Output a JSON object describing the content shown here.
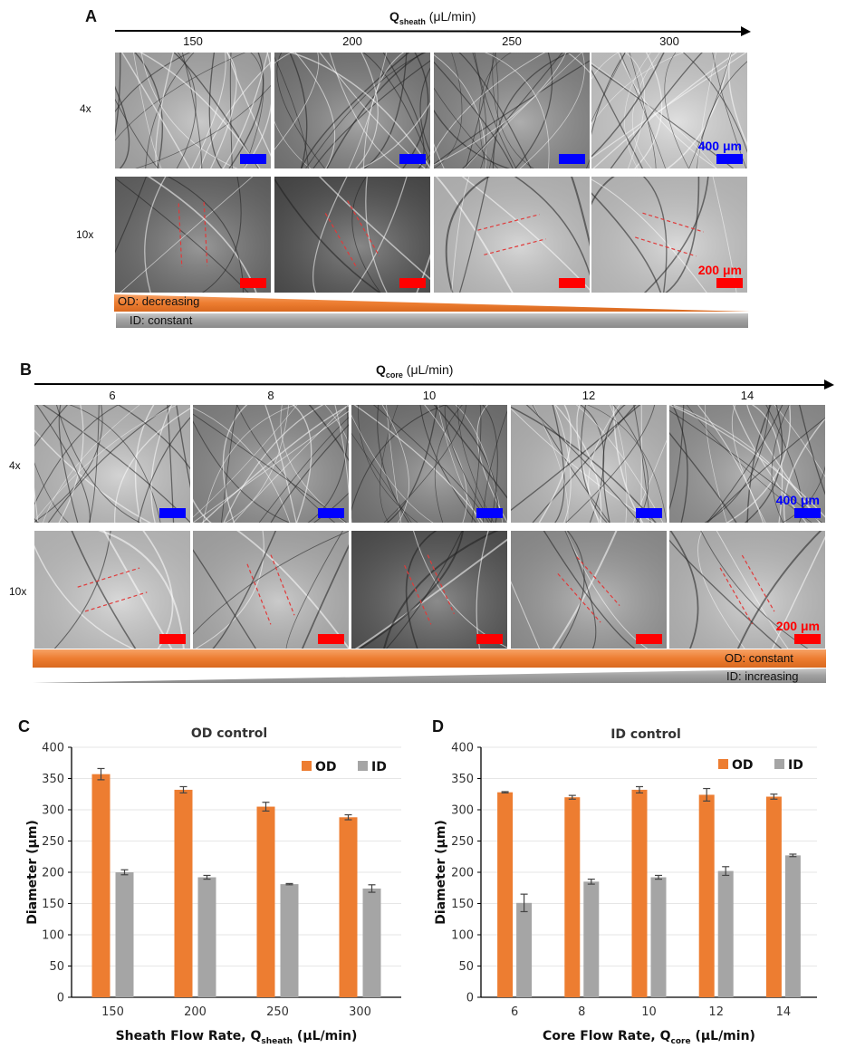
{
  "panel_a": {
    "letter": "A",
    "axis_symbol": "Q",
    "axis_sub": "sheath",
    "axis_unit": " (μL/min)",
    "columns": [
      "150",
      "200",
      "250",
      "300"
    ],
    "rows": [
      "4x",
      "10x"
    ],
    "scale_4x": "400 μm",
    "scale_10x": "200 μm",
    "od_label": "OD: decreasing",
    "id_label": "ID: constant",
    "tones_4x": [
      "#b4b4b4",
      "#7e7e7e",
      "#8a8a8a",
      "#d8d8d8"
    ],
    "tones_10x": [
      "#6a6a6a",
      "#4f4f4f",
      "#c9c9c9",
      "#cfcfcf"
    ]
  },
  "panel_b": {
    "letter": "B",
    "axis_symbol": "Q",
    "axis_sub": "core",
    "axis_unit": " (μL/min)",
    "columns": [
      "6",
      "8",
      "10",
      "12",
      "14"
    ],
    "rows": [
      "4x",
      "10x"
    ],
    "scale_4x": "400 μm",
    "scale_10x": "200 μm",
    "od_label": "OD: constant",
    "id_label": "ID: increasing",
    "tones_4x": [
      "#c4c4c4",
      "#8e8e8e",
      "#7a7a7a",
      "#c2c2c2",
      "#9a9a9a"
    ],
    "tones_10x": [
      "#cdcdcd",
      "#b6b6b6",
      "#555555",
      "#9c9c9c",
      "#c4c4c4"
    ]
  },
  "colors": {
    "od": "#ED7D31",
    "id": "#A5A5A5",
    "scale_4x": "#0000ff",
    "scale_10x": "#ff0000",
    "dash": "#e03a3a"
  },
  "chart_data": [
    {
      "letter": "C",
      "type": "bar",
      "title": "OD control",
      "xlabel": "Sheath Flow Rate, Q",
      "xlabel_sub": "sheath",
      "xlabel_unit": " (μL/min)",
      "ylabel": "Diameter (μm)",
      "ylim": [
        0,
        400
      ],
      "yticks": [
        0,
        50,
        100,
        150,
        200,
        250,
        300,
        350,
        400
      ],
      "categories": [
        "150",
        "200",
        "250",
        "300"
      ],
      "legend_position": "top-right",
      "grid": true,
      "series": [
        {
          "name": "OD",
          "values": [
            357,
            332,
            305,
            288
          ],
          "errors": [
            9,
            5,
            7,
            4
          ]
        },
        {
          "name": "ID",
          "values": [
            200,
            192,
            181,
            174
          ],
          "errors": [
            4,
            3,
            1,
            6
          ]
        }
      ]
    },
    {
      "letter": "D",
      "type": "bar",
      "title": "ID control",
      "xlabel": "Core Flow Rate, Q",
      "xlabel_sub": "core",
      "xlabel_unit": " (μL/min)",
      "ylabel": "Diameter (μm)",
      "ylim": [
        0,
        400
      ],
      "yticks": [
        0,
        50,
        100,
        150,
        200,
        250,
        300,
        350,
        400
      ],
      "categories": [
        "6",
        "8",
        "10",
        "12",
        "14"
      ],
      "legend_position": "top-right",
      "grid": true,
      "series": [
        {
          "name": "OD",
          "values": [
            328,
            320,
            332,
            324,
            321
          ],
          "errors": [
            1,
            3,
            5,
            10,
            4
          ]
        },
        {
          "name": "ID",
          "values": [
            151,
            185,
            192,
            202,
            227
          ],
          "errors": [
            14,
            4,
            3,
            7,
            2
          ]
        }
      ]
    }
  ]
}
